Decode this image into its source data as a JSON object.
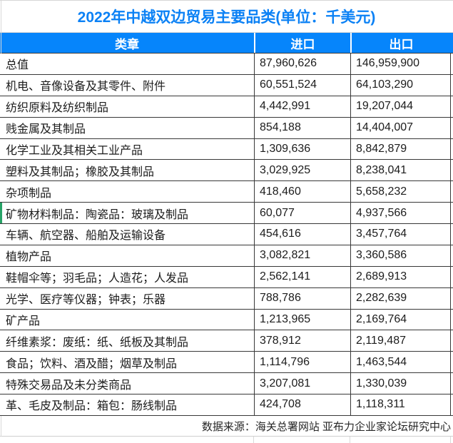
{
  "title": "2022年中越双边贸易主要品类(单位：千美元)",
  "colors": {
    "title_blue": "#0b81f5",
    "header_bg": "#0685fb",
    "header_text": "#ffffff",
    "border_dark": "#383838",
    "gridline_light": "#d9d9d9",
    "row_marker_green": "#27a367"
  },
  "table": {
    "columns": [
      "类章",
      "进口",
      "出口"
    ],
    "rows": [
      {
        "category": "总值",
        "import": "87,960,626",
        "export": "146,959,900"
      },
      {
        "category": "机电、音像设备及其零件、附件",
        "import": "60,551,524",
        "export": "64,103,290"
      },
      {
        "category": "纺织原料及纺织制品",
        "import": "4,442,991",
        "export": "19,207,044"
      },
      {
        "category": "贱金属及其制品",
        "import": "854,188",
        "export": "14,404,007"
      },
      {
        "category": "化学工业及其相关工业产品",
        "import": "1,309,636",
        "export": "8,842,879"
      },
      {
        "category": "塑料及其制品；橡胶及其制品",
        "import": "3,029,925",
        "export": "8,238,041"
      },
      {
        "category": "杂项制品",
        "import": "418,460",
        "export": "5,658,232"
      },
      {
        "category": "矿物材料制品：陶瓷品：玻璃及制品",
        "import": "60,077",
        "export": "4,937,566",
        "green_marker": true
      },
      {
        "category": "车辆、航空器、船舶及运输设备",
        "import": "454,616",
        "export": "3,457,764"
      },
      {
        "category": "植物产品",
        "import": "3,082,821",
        "export": "3,360,586"
      },
      {
        "category": "鞋帽伞等；羽毛品；人造花；人发品",
        "import": "2,562,141",
        "export": "2,689,913"
      },
      {
        "category": "光学、医疗等仪器；钟表；乐器",
        "import": "788,786",
        "export": "2,282,639"
      },
      {
        "category": "矿产品",
        "import": "1,213,965",
        "export": "2,169,764"
      },
      {
        "category": "纤维素浆：废纸：纸、纸板及其制品",
        "import": "378,912",
        "export": "2,119,487"
      },
      {
        "category": "食品；饮料、酒及醋；烟草及制品",
        "import": "1,114,796",
        "export": "1,463,544"
      },
      {
        "category": "特殊交易品及未分类商品",
        "import": "3,207,081",
        "export": "1,330,039"
      },
      {
        "category": "革、毛皮及制品：箱包：肠线制品",
        "import": "424,708",
        "export": "1,118,311"
      }
    ],
    "footer": "数据来源：海关总署网站 亚布力企业家论坛研究中心"
  },
  "chart_data": {
    "type": "table",
    "title": "2022年中越双边贸易主要品类(单位：千美元)",
    "columns": [
      "类章",
      "进口",
      "出口"
    ],
    "unit": "千美元",
    "categories": [
      "总值",
      "机电、音像设备及其零件、附件",
      "纺织原料及纺织制品",
      "贱金属及其制品",
      "化学工业及其相关工业产品",
      "塑料及其制品；橡胶及其制品",
      "杂项制品",
      "矿物材料制品：陶瓷品：玻璃及制品",
      "车辆、航空器、船舶及运输设备",
      "植物产品",
      "鞋帽伞等；羽毛品；人造花；人发品",
      "光学、医疗等仪器；钟表；乐器",
      "矿产品",
      "纤维素浆：废纸：纸、纸板及其制品",
      "食品；饮料、酒及醋；烟草及制品",
      "特殊交易品及未分类商品",
      "革、毛皮及制品：箱包：肠线制品"
    ],
    "series": [
      {
        "name": "进口",
        "values": [
          87960626,
          60551524,
          4442991,
          854188,
          1309636,
          3029925,
          418460,
          60077,
          454616,
          3082821,
          2562141,
          788786,
          1213965,
          378912,
          1114796,
          3207081,
          424708
        ]
      },
      {
        "name": "出口",
        "values": [
          146959900,
          64103290,
          19207044,
          14404007,
          8842879,
          8238041,
          5658232,
          4937566,
          3457764,
          3360586,
          2689913,
          2282639,
          2169764,
          2119487,
          1463544,
          1330039,
          1118311
        ]
      }
    ],
    "source_note": "数据来源：海关总署网站 亚布力企业家论坛研究中心"
  }
}
